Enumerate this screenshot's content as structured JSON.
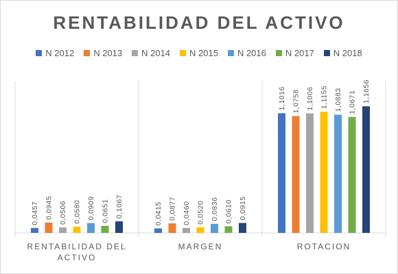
{
  "chart_data": {
    "type": "bar",
    "title": "RENTABILIDAD DEL ACTIVO",
    "categories": [
      "RENTABILIDAD DEL ACTIVO",
      "MARGEN",
      "ROTACION"
    ],
    "category_lines": [
      [
        "RENTABILIDAD DEL",
        "ACTIVO"
      ],
      [
        "MARGEN"
      ],
      [
        "ROTACION"
      ]
    ],
    "legend_position": "top",
    "grid": false,
    "ylim": [
      0,
      1.4
    ],
    "series": [
      {
        "name": "N 2012",
        "color": "#4472C4",
        "values": [
          0.0457,
          0.0415,
          1.1016
        ],
        "labels": [
          "0,0457",
          "0,0415",
          "1,1016"
        ]
      },
      {
        "name": "N 2013",
        "color": "#ED7D31",
        "values": [
          0.0945,
          0.0877,
          1.0758
        ],
        "labels": [
          "0,0945",
          "0,0877",
          "1,0758"
        ]
      },
      {
        "name": "N 2014",
        "color": "#A5A5A5",
        "values": [
          0.0506,
          0.046,
          1.1006
        ],
        "labels": [
          "0,0506",
          "0,0460",
          "1,1006"
        ]
      },
      {
        "name": "N 2015",
        "color": "#FFC000",
        "values": [
          0.058,
          0.052,
          1.1155
        ],
        "labels": [
          "0,0580",
          "0,0520",
          "1,1155"
        ]
      },
      {
        "name": "N 2016",
        "color": "#5B9BD5",
        "values": [
          0.0909,
          0.0836,
          1.0883
        ],
        "labels": [
          "0,0909",
          "0,0836",
          "1,0883"
        ]
      },
      {
        "name": "N 2017",
        "color": "#70AD47",
        "values": [
          0.0651,
          0.061,
          1.0671
        ],
        "labels": [
          "0,0651",
          "0,0610",
          "1,0671"
        ]
      },
      {
        "name": "N 2018",
        "color": "#264478",
        "values": [
          0.1067,
          0.0915,
          1.1656
        ],
        "labels": [
          "0,1067",
          "0,0915",
          "1,1656"
        ]
      }
    ]
  }
}
